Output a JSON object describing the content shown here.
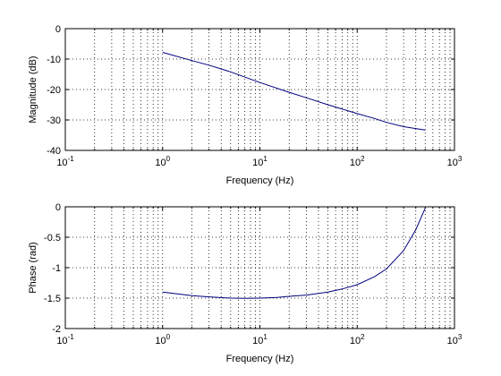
{
  "chart_data": [
    {
      "type": "line",
      "title": "",
      "xlabel": "Frequency (Hz)",
      "ylabel": "Magnitude (dB)",
      "xscale": "log",
      "xlim": [
        0.1,
        1000
      ],
      "ylim": [
        -40,
        0
      ],
      "grid": true,
      "x_ticks": [
        {
          "value": 0.1,
          "base": "10",
          "exp": "-1"
        },
        {
          "value": 1,
          "base": "10",
          "exp": "0"
        },
        {
          "value": 10,
          "base": "10",
          "exp": "1"
        },
        {
          "value": 100,
          "base": "10",
          "exp": "2"
        },
        {
          "value": 1000,
          "base": "10",
          "exp": "3"
        }
      ],
      "y_ticks": [
        {
          "value": 0,
          "label": "0"
        },
        {
          "value": -10,
          "label": "-10"
        },
        {
          "value": -20,
          "label": "-20"
        },
        {
          "value": -30,
          "label": "-30"
        },
        {
          "value": -40,
          "label": "-40"
        }
      ],
      "series": [
        {
          "color": "#00007f",
          "x": [
            1,
            2,
            3,
            5,
            10,
            20,
            30,
            50,
            100,
            150,
            200,
            300,
            500
          ],
          "y": [
            -7.8,
            -10.5,
            -12.0,
            -14.2,
            -17.7,
            -20.9,
            -22.7,
            -25.0,
            -27.9,
            -29.5,
            -30.8,
            -32.2,
            -33.3
          ]
        }
      ]
    },
    {
      "type": "line",
      "title": "",
      "xlabel": "Frequency (Hz)",
      "ylabel": "Phase (rad)",
      "xscale": "log",
      "xlim": [
        0.1,
        1000
      ],
      "ylim": [
        -2,
        0
      ],
      "grid": true,
      "x_ticks": [
        {
          "value": 0.1,
          "base": "10",
          "exp": "-1"
        },
        {
          "value": 1,
          "base": "10",
          "exp": "0"
        },
        {
          "value": 10,
          "base": "10",
          "exp": "1"
        },
        {
          "value": 100,
          "base": "10",
          "exp": "2"
        },
        {
          "value": 1000,
          "base": "10",
          "exp": "3"
        }
      ],
      "y_ticks": [
        {
          "value": 0,
          "label": "0"
        },
        {
          "value": -0.5,
          "label": "-0.5"
        },
        {
          "value": -1,
          "label": "-1"
        },
        {
          "value": -1.5,
          "label": "-1.5"
        },
        {
          "value": -2,
          "label": "-2"
        }
      ],
      "series": [
        {
          "color": "#00007f",
          "x": [
            1,
            2,
            3,
            5,
            7,
            10,
            15,
            20,
            30,
            50,
            70,
            100,
            150,
            200,
            300,
            400,
            500
          ],
          "y": [
            -1.4,
            -1.46,
            -1.48,
            -1.5,
            -1.505,
            -1.5,
            -1.49,
            -1.47,
            -1.45,
            -1.4,
            -1.35,
            -1.28,
            -1.15,
            -1.02,
            -0.72,
            -0.38,
            -0.02
          ]
        }
      ]
    }
  ]
}
